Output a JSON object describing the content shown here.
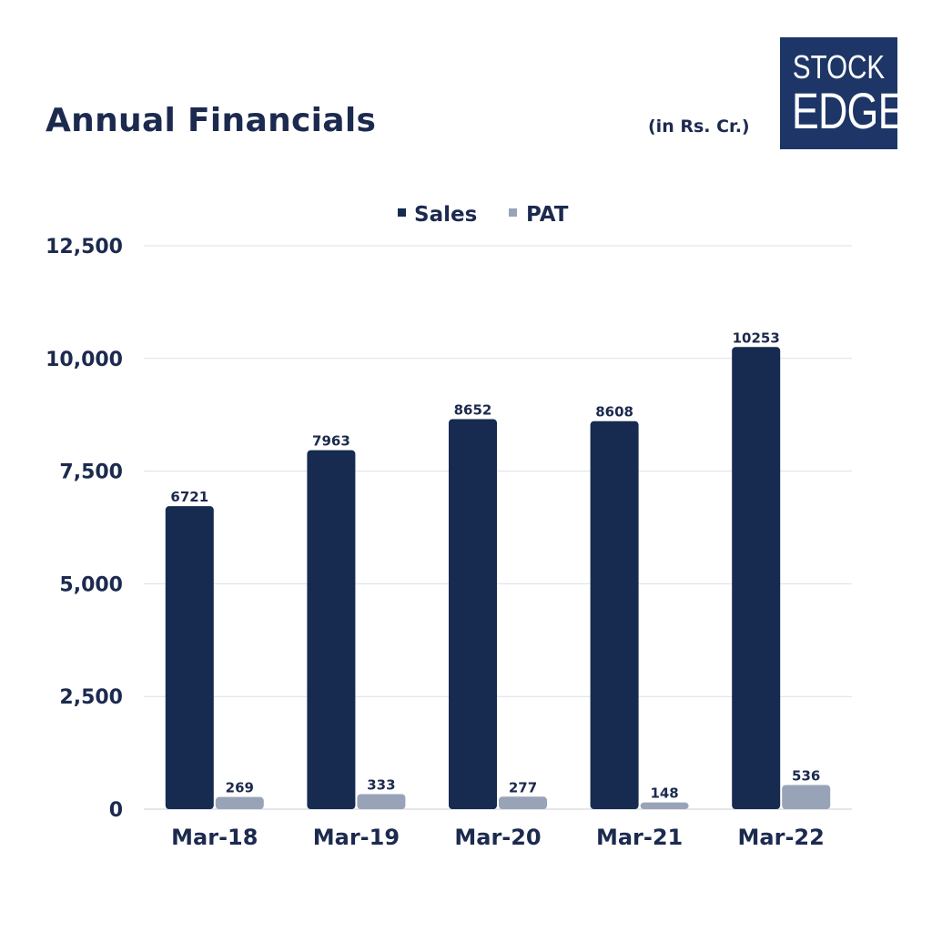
{
  "header": {
    "title": "Annual Financials",
    "units": "(in Rs. Cr.)"
  },
  "logo": {
    "line1": "STOCK",
    "line2": "EDGE",
    "color": "#1d3667"
  },
  "chart_data": {
    "type": "bar",
    "categories": [
      "Mar-18",
      "Mar-19",
      "Mar-20",
      "Mar-21",
      "Mar-22"
    ],
    "series": [
      {
        "name": "Sales",
        "values": [
          6721,
          7963,
          8652,
          8608,
          10253
        ],
        "color": "#172a50"
      },
      {
        "name": "PAT",
        "values": [
          269,
          333,
          277,
          148,
          536
        ],
        "color": "#99a3b8"
      }
    ],
    "ylim": [
      0,
      12500
    ],
    "yticks": [
      0,
      2500,
      5000,
      7500,
      10000,
      12500
    ],
    "ytick_labels": [
      "0",
      "2,500",
      "5,000",
      "7,500",
      "10,000",
      "12,500"
    ],
    "grid": true,
    "legend_position": "top-center",
    "data_labels": true
  }
}
